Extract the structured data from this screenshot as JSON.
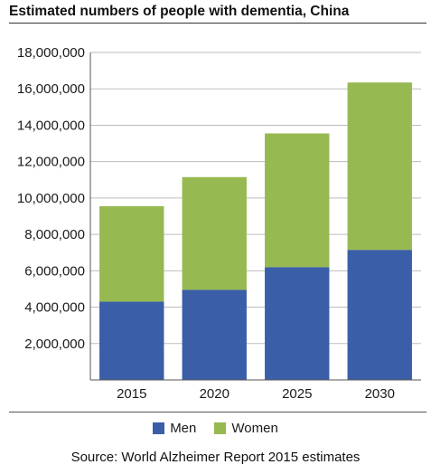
{
  "chart_data": {
    "type": "bar",
    "stacked": true,
    "title": "Estimated numbers of people with dementia, China",
    "categories": [
      "2015",
      "2020",
      "2025",
      "2030"
    ],
    "series": [
      {
        "name": "Men",
        "values": [
          4300000,
          4950000,
          6200000,
          7150000
        ],
        "color": "#3a5ea8"
      },
      {
        "name": "Women",
        "values": [
          5250000,
          6200000,
          7350000,
          9200000
        ],
        "color": "#97b952"
      }
    ],
    "ylim": [
      0,
      18000000
    ],
    "yticks": [
      "2,000,000",
      "4,000,000",
      "6,000,000",
      "8,000,000",
      "10,000,000",
      "12,000,000",
      "14,000,000",
      "16,000,000",
      "18,000,000"
    ],
    "ytick_values": [
      2000000,
      4000000,
      6000000,
      8000000,
      10000000,
      12000000,
      14000000,
      16000000,
      18000000
    ],
    "grid": true,
    "legend": "bottom",
    "source": "Source: World Alzheimer Report 2015 estimates"
  },
  "colors": {
    "men": "#3a5ea8",
    "women": "#97b952",
    "grid": "#bdbdbd",
    "axis": "#555555"
  }
}
